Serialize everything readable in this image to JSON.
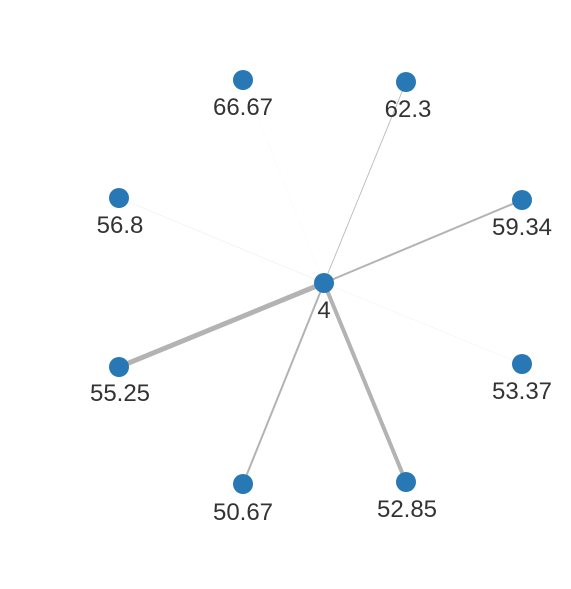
{
  "graph": {
    "colors": {
      "node": "#2878b5",
      "edge": "#b3b3b3",
      "label": "#333333",
      "background": "#ffffff"
    },
    "center": {
      "id": "center",
      "label": "4"
    },
    "nodes": [
      {
        "id": "n1",
        "label": "66.67",
        "edge_weight": 0.1
      },
      {
        "id": "n2",
        "label": "62.3",
        "edge_weight": 0.8
      },
      {
        "id": "n3",
        "label": "56.8",
        "edge_weight": 0.3
      },
      {
        "id": "n4",
        "label": "59.34",
        "edge_weight": 2
      },
      {
        "id": "n5",
        "label": "55.25",
        "edge_weight": 5
      },
      {
        "id": "n6",
        "label": "53.37",
        "edge_weight": 0.2
      },
      {
        "id": "n7",
        "label": "50.67",
        "edge_weight": 2
      },
      {
        "id": "n8",
        "label": "52.85",
        "edge_weight": 4
      }
    ]
  }
}
